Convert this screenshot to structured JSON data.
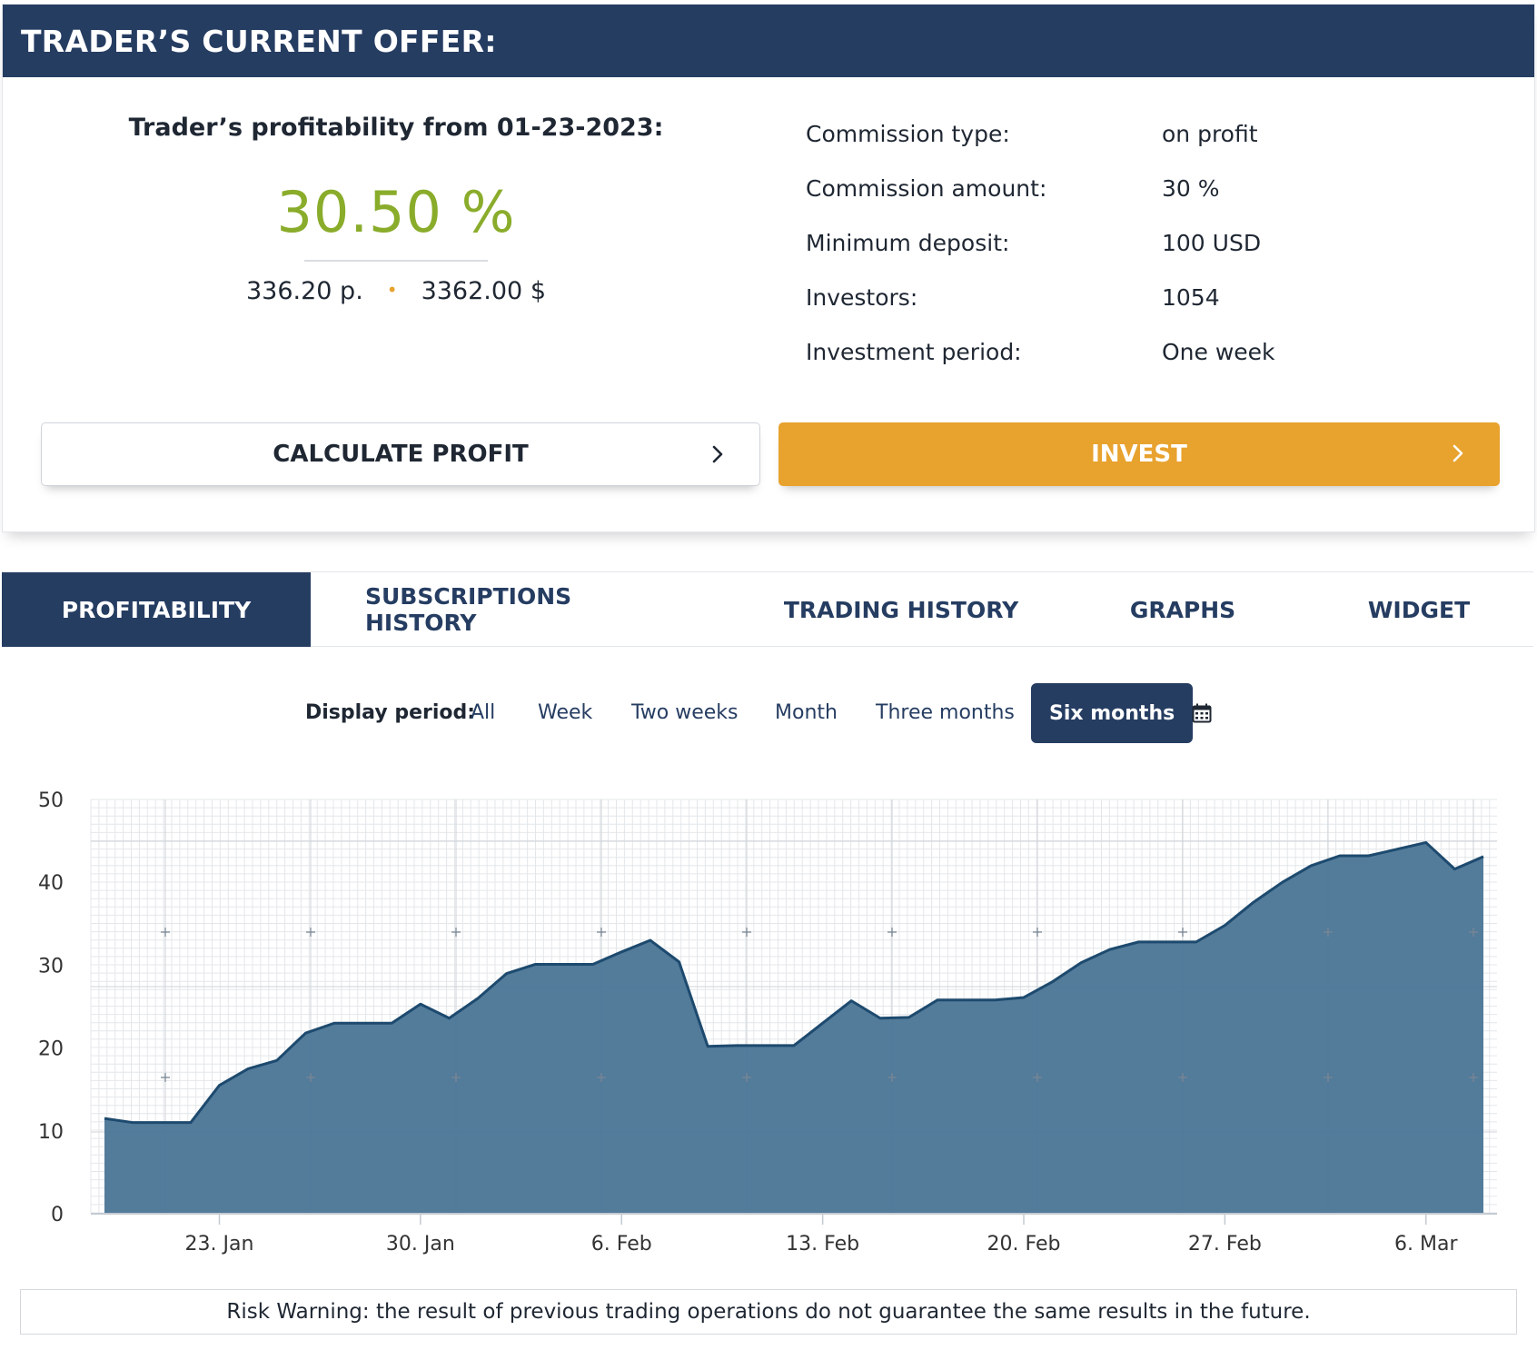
{
  "offer": {
    "header_title": "TRADER’S CURRENT OFFER:",
    "profitability_title": "Trader’s profitability from 01-23-2023:",
    "profitability_value": "30.50 %",
    "points": "336.20 p.",
    "separator": "•",
    "amount": "3362.00 $",
    "info": [
      {
        "label": "Commission type:",
        "value": "on profit"
      },
      {
        "label": "Commission amount:",
        "value": "30 %"
      },
      {
        "label": "Minimum deposit:",
        "value": "100 USD"
      },
      {
        "label": "Investors:",
        "value": "1054"
      },
      {
        "label": "Investment period:",
        "value": "One week"
      }
    ],
    "calculate_label": "CALCULATE PROFIT",
    "invest_label": "INVEST"
  },
  "tabs": [
    {
      "label": "PROFITABILITY",
      "active": true
    },
    {
      "label": "SUBSCRIPTIONS HISTORY",
      "active": false
    },
    {
      "label": "TRADING HISTORY",
      "active": false
    },
    {
      "label": "GRAPHS",
      "active": false
    },
    {
      "label": "WIDGET",
      "active": false
    }
  ],
  "period": {
    "label": "Display period:",
    "options": [
      "All",
      "Week",
      "Two weeks",
      "Month",
      "Three months",
      "Six months"
    ],
    "selected": "Six months",
    "calendar_icon": "calendar-icon"
  },
  "colors": {
    "header_bg": "#263d62",
    "accent_orange": "#e8a22e",
    "profit_green": "#8aac2b",
    "area_fill": "#4d7797",
    "area_line": "#1d4a6e"
  },
  "chart_data": {
    "type": "area",
    "ylim": [
      0,
      50
    ],
    "yticks": [
      0,
      10,
      20,
      30,
      40,
      50
    ],
    "x_tick_labels": [
      "23. Jan",
      "30. Jan",
      "6. Feb",
      "13. Feb",
      "20. Feb",
      "27. Feb",
      "6. Mar"
    ],
    "x": [
      "2023-01-19",
      "2023-01-20",
      "2023-01-21",
      "2023-01-22",
      "2023-01-23",
      "2023-01-24",
      "2023-01-25",
      "2023-01-26",
      "2023-01-27",
      "2023-01-28",
      "2023-01-29",
      "2023-01-30",
      "2023-01-31",
      "2023-02-01",
      "2023-02-02",
      "2023-02-03",
      "2023-02-04",
      "2023-02-05",
      "2023-02-06",
      "2023-02-07",
      "2023-02-08",
      "2023-02-09",
      "2023-02-10",
      "2023-02-11",
      "2023-02-12",
      "2023-02-13",
      "2023-02-14",
      "2023-02-15",
      "2023-02-16",
      "2023-02-17",
      "2023-02-18",
      "2023-02-19",
      "2023-02-20",
      "2023-02-21",
      "2023-02-22",
      "2023-02-23",
      "2023-02-24",
      "2023-02-25",
      "2023-02-26",
      "2023-02-27",
      "2023-02-28",
      "2023-03-01",
      "2023-03-02",
      "2023-03-03",
      "2023-03-04",
      "2023-03-05",
      "2023-03-06",
      "2023-03-07",
      "2023-03-08"
    ],
    "values": [
      11.5,
      11.0,
      11.0,
      11.0,
      15.5,
      17.5,
      18.5,
      21.8,
      23.0,
      23.0,
      23.0,
      25.3,
      23.6,
      26.0,
      29.0,
      30.1,
      30.1,
      30.1,
      31.6,
      33.0,
      30.4,
      20.2,
      20.3,
      20.3,
      20.3,
      23.0,
      25.7,
      23.6,
      23.7,
      25.8,
      25.8,
      25.8,
      26.1,
      28.0,
      30.3,
      31.9,
      32.8,
      32.8,
      32.8,
      34.8,
      37.6,
      40.0,
      42.0,
      43.2,
      43.2,
      44.0,
      44.8,
      41.6,
      43.1
    ],
    "grid": true
  },
  "risk_warning": "Risk Warning: the result of previous trading operations do not guarantee the same results in the future."
}
